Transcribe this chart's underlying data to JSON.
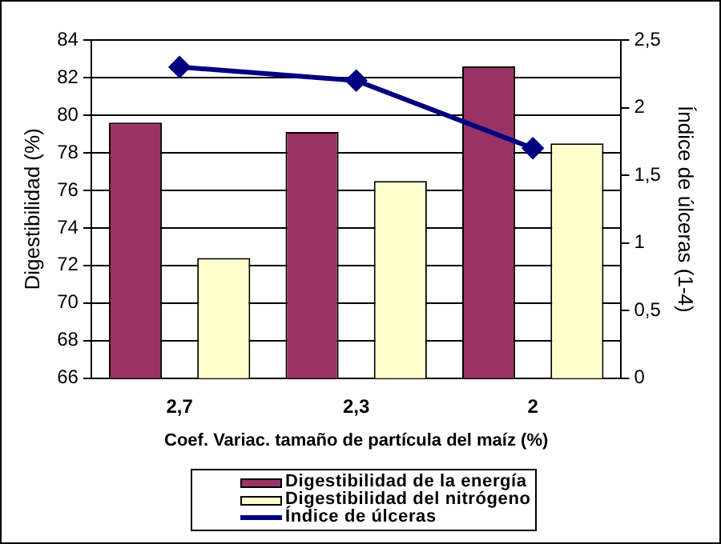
{
  "chart_data": {
    "type": "bar",
    "xlabel": "Coef. Variac. tamaño de partícula del maíz (%)",
    "ylabel": "Digestibilidad (%)",
    "y2label": "Índice de úlceras (1-4)",
    "categories": [
      "2,7",
      "2,3",
      "2"
    ],
    "series": [
      {
        "name": "Digestibilidad de la energía",
        "color": "#993366",
        "values": [
          79.6,
          79.1,
          82.6
        ]
      },
      {
        "name": "Digestibilidad del nitrógeno",
        "color": "#ffffcc",
        "values": [
          72.4,
          76.5,
          78.5
        ]
      },
      {
        "name": "Índice de úlceras",
        "type": "line",
        "axis": "y2",
        "color": "#000080",
        "marker": "diamond",
        "values": [
          2.3,
          2.2,
          1.7
        ]
      }
    ],
    "ylim": [
      66,
      84
    ],
    "yticks": [
      66,
      68,
      70,
      72,
      74,
      76,
      78,
      80,
      82,
      84
    ],
    "y2lim": [
      0,
      2.5
    ],
    "y2ticks": [
      0,
      {
        "value": 0.5,
        "label": "0,5"
      },
      1,
      {
        "value": 1.5,
        "label": "1,5"
      },
      2,
      {
        "value": 2.5,
        "label": "2,5"
      }
    ],
    "grid": "y",
    "legend": "bottom"
  }
}
